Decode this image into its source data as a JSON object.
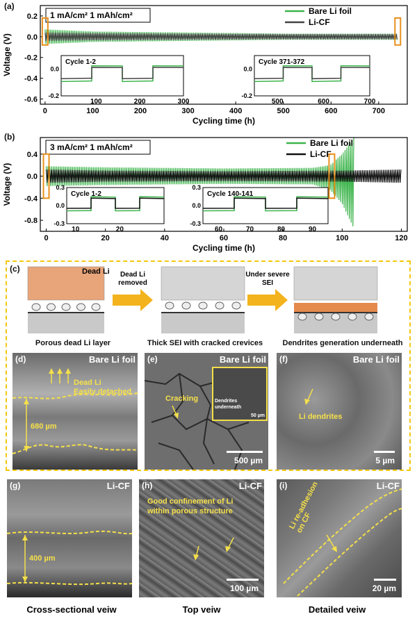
{
  "panel_a": {
    "letter": "(a)",
    "condition": "1 mA/cm² 1 mAh/cm²",
    "legend": [
      "Bare Li foil",
      "Li-CF"
    ],
    "inset1_title": "Cycle 1-2",
    "inset2_title": "Cycle 371-372"
  },
  "panel_b": {
    "letter": "(b)",
    "condition": "3 mA/cm² 1 mAh/cm²",
    "legend": [
      "Bare Li foil",
      "Li-CF"
    ],
    "inset1_title": "Cycle 1-2",
    "inset2_title": "Cycle 140-141"
  },
  "panel_c": {
    "letter": "(c)",
    "dead_li_label": "Dead Li",
    "arrow1": "Dead Li removed",
    "arrow2": "Under severe SEI",
    "captions": [
      "Porous dead Li layer",
      "Thick SEI with cracked crevices",
      "Dendrites generation underneath"
    ]
  },
  "sem": {
    "d": {
      "letter": "(d)",
      "tag": "Bare Li foil",
      "note1": "Dead Li",
      "note2": "Easily detached",
      "thickness": "680 µm"
    },
    "e": {
      "letter": "(e)",
      "tag": "Bare Li foil",
      "note": "Cracking",
      "inset_note1": "Dendrites",
      "inset_note2": "underneath",
      "inset_scale": "50 µm",
      "scale": "500 µm"
    },
    "f": {
      "letter": "(f)",
      "tag": "Bare Li foil",
      "note": "Li dendrites",
      "scale": "5 µm"
    },
    "g": {
      "letter": "(g)",
      "tag": "Li-CF",
      "thickness": "400 µm"
    },
    "h": {
      "letter": "(h)",
      "tag": "Li-CF",
      "note1": "Good confinement of Li",
      "note2": "within porous structure",
      "scale": "100 µm"
    },
    "i": {
      "letter": "(i)",
      "tag": "Li-CF",
      "note1": "Li re-adhesion",
      "note2": "on CF",
      "scale": "20 µm"
    }
  },
  "bottom_captions": [
    "Cross-sectional veiw",
    "Top veiw",
    "Detailed veiw"
  ],
  "chart_data": [
    {
      "type": "line",
      "title": "1 mA/cm² 1 mAh/cm²",
      "xlabel": "Cycling time (h)",
      "ylabel": "Voltage (V)",
      "xlim": [
        -10,
        760
      ],
      "ylim": [
        -0.65,
        0.3
      ],
      "xticks": [
        0,
        100,
        200,
        300,
        400,
        500,
        600,
        700
      ],
      "yticks": [
        0.2,
        0.0,
        -0.2,
        -0.4,
        -0.6
      ],
      "series": [
        {
          "name": "Bare Li foil",
          "color": "#3cb44b",
          "envelope": {
            "x": [
              0,
              100,
              300,
              500,
              740
            ],
            "upper": [
              0.07,
              0.05,
              0.04,
              0.03,
              0.03
            ],
            "lower": [
              -0.07,
              -0.05,
              -0.04,
              -0.03,
              -0.03
            ]
          }
        },
        {
          "name": "Li-CF",
          "color": "#444444",
          "envelope": {
            "x": [
              0,
              100,
              300,
              500,
              740
            ],
            "upper": [
              0.04,
              0.035,
              0.03,
              0.025,
              0.025
            ],
            "lower": [
              -0.04,
              -0.035,
              -0.03,
              -0.025,
              -0.025
            ]
          }
        }
      ],
      "insets": [
        {
          "title": "Cycle 1-2",
          "xticks": [
            100,
            200,
            300
          ],
          "yticks": [
            0.0,
            -0.2
          ],
          "xlim": [
            20,
            300
          ],
          "ylim": [
            -0.2,
            0.1
          ]
        },
        {
          "title": "Cycle 371-372",
          "xticks": [
            500,
            600,
            700
          ],
          "yticks": [
            0.0,
            -0.2
          ],
          "xlim": [
            450,
            700
          ],
          "ylim": [
            -0.2,
            0.1
          ]
        }
      ]
    },
    {
      "type": "line",
      "title": "3 mA/cm² 1 mAh/cm²",
      "xlabel": "Cycling time (h)",
      "ylabel": "Voltage (V)",
      "xlim": [
        -2,
        122
      ],
      "ylim": [
        -1.0,
        0.7
      ],
      "xticks": [
        0,
        20,
        40,
        60,
        80,
        100,
        120
      ],
      "yticks": [
        0.4,
        0.0,
        -0.4,
        -0.8
      ],
      "series": [
        {
          "name": "Bare Li foil",
          "color": "#3cb44b",
          "envelope": {
            "x": [
              0,
              20,
              60,
              90,
              96,
              100,
              104
            ],
            "upper": [
              0.18,
              0.16,
              0.14,
              0.15,
              0.2,
              0.4,
              0.7
            ],
            "lower": [
              -0.18,
              -0.16,
              -0.14,
              -0.15,
              -0.25,
              -0.5,
              -0.95
            ]
          }
        },
        {
          "name": "Li-CF",
          "color": "#111111",
          "envelope": {
            "x": [
              0,
              20,
              60,
              100,
              120
            ],
            "upper": [
              0.12,
              0.1,
              0.09,
              0.1,
              0.12
            ],
            "lower": [
              -0.12,
              -0.1,
              -0.09,
              -0.1,
              -0.12
            ]
          }
        }
      ],
      "insets": [
        {
          "title": "Cycle 1-2",
          "xticks": [
            10,
            20
          ],
          "yticks": [
            0.3,
            0.0,
            -0.3
          ],
          "xlim": [
            8,
            30
          ],
          "ylim": [
            -0.3,
            0.3
          ]
        },
        {
          "title": "Cycle 140-141",
          "xticks": [
            60,
            70,
            80,
            90
          ],
          "yticks": [
            0.3,
            0.0,
            -0.3
          ],
          "xlim": [
            55,
            95
          ],
          "ylim": [
            -0.3,
            0.3
          ]
        }
      ]
    }
  ]
}
